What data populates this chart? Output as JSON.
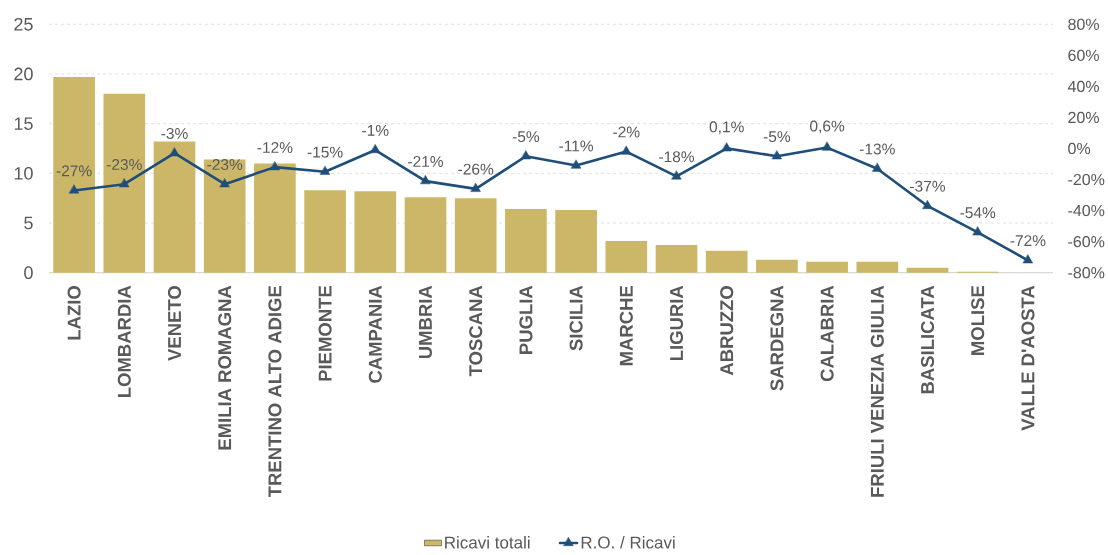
{
  "chart_data": {
    "type": "bar",
    "categories": [
      "LAZIO",
      "LOMBARDIA",
      "VENETO",
      "EMILIA ROMAGNA",
      "TRENTINO ALTO ADIGE",
      "PIEMONTE",
      "CAMPANIA",
      "UMBRIA",
      "TOSCANA",
      "PUGLIA",
      "SICILIA",
      "MARCHE",
      "LIGURIA",
      "ABRUZZO",
      "SARDEGNA",
      "CALABRIA",
      "FRIULI VENEZIA GIULIA",
      "BASILICATA",
      "MOLISE",
      "VALLE D'AOSTA"
    ],
    "series": [
      {
        "name": "Ricavi totali",
        "color": "#cbb767",
        "values": [
          19.7,
          18.0,
          13.2,
          11.4,
          11.0,
          8.3,
          8.2,
          7.6,
          7.5,
          6.4,
          6.3,
          3.2,
          2.8,
          2.2,
          1.3,
          1.1,
          1.1,
          0.5,
          0.1,
          0
        ]
      },
      {
        "name": "R.O. / Ricavi",
        "type": "line",
        "axis": "y2",
        "color": "#1f4e79",
        "marker": "triangle",
        "line_style": "solid",
        "values": [
          -27,
          -23,
          -3,
          -23,
          -12,
          -15,
          -1,
          -21,
          -26,
          -5,
          -11,
          -2,
          -18,
          0.1,
          -5,
          0.6,
          -13,
          -37,
          -54,
          -72
        ],
        "value_labels": [
          "-27%",
          "-23%",
          "-3%",
          "-23%",
          "-12%",
          "-15%",
          "-1%",
          "-21%",
          "-26%",
          "-5%",
          "-11%",
          "-2%",
          "-18%",
          "0,1%",
          "-5%",
          "0,6%",
          "-13%",
          "-37%",
          "-54%",
          "-72%"
        ]
      }
    ],
    "ylim": [
      0,
      25
    ],
    "yticks": [
      0,
      5,
      10,
      15,
      20,
      25
    ],
    "y2lim": [
      -80,
      80
    ],
    "y2ticks": [
      {
        "value": -80,
        "label": "-80%"
      },
      {
        "value": -60,
        "label": "-60%"
      },
      {
        "value": -40,
        "label": "-40%"
      },
      {
        "value": -20,
        "label": "-20%"
      },
      {
        "value": 0,
        "label": "0%"
      },
      {
        "value": 20,
        "label": "20%"
      },
      {
        "value": 40,
        "label": "40%"
      },
      {
        "value": 60,
        "label": "60%"
      },
      {
        "value": 80,
        "label": "80%"
      }
    ],
    "grid": "y",
    "legend": "bottom"
  }
}
